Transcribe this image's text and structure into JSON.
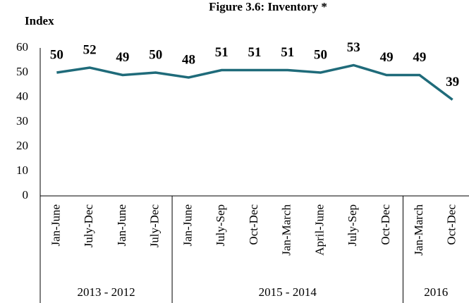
{
  "chart_data": {
    "type": "line",
    "title": "Figure 3.6: Inventory *",
    "y_label": "Index",
    "categories": [
      "Jan-June",
      "July-Dec",
      "Jan-June",
      "July-Dec",
      "Jan-June",
      "July-Sep",
      "Oct-Dec",
      "Jan-March",
      "April-June",
      "July-Sep",
      "Oct-Dec",
      "Jan-March",
      "Oct-Dec"
    ],
    "groups": [
      {
        "label": "2013 - 2012",
        "span": 4
      },
      {
        "label": "2015 - 2014",
        "span": 7
      },
      {
        "label": "2016",
        "span": 2
      }
    ],
    "series": [
      {
        "name": "Inventory",
        "color": "#1f6b7a",
        "values": [
          50,
          52,
          49,
          50,
          48,
          51,
          51,
          51,
          50,
          53,
          49,
          49,
          39
        ]
      }
    ],
    "ylim": [
      0,
      60
    ],
    "yticks": [
      0,
      10,
      20,
      30,
      40,
      50,
      60
    ]
  }
}
